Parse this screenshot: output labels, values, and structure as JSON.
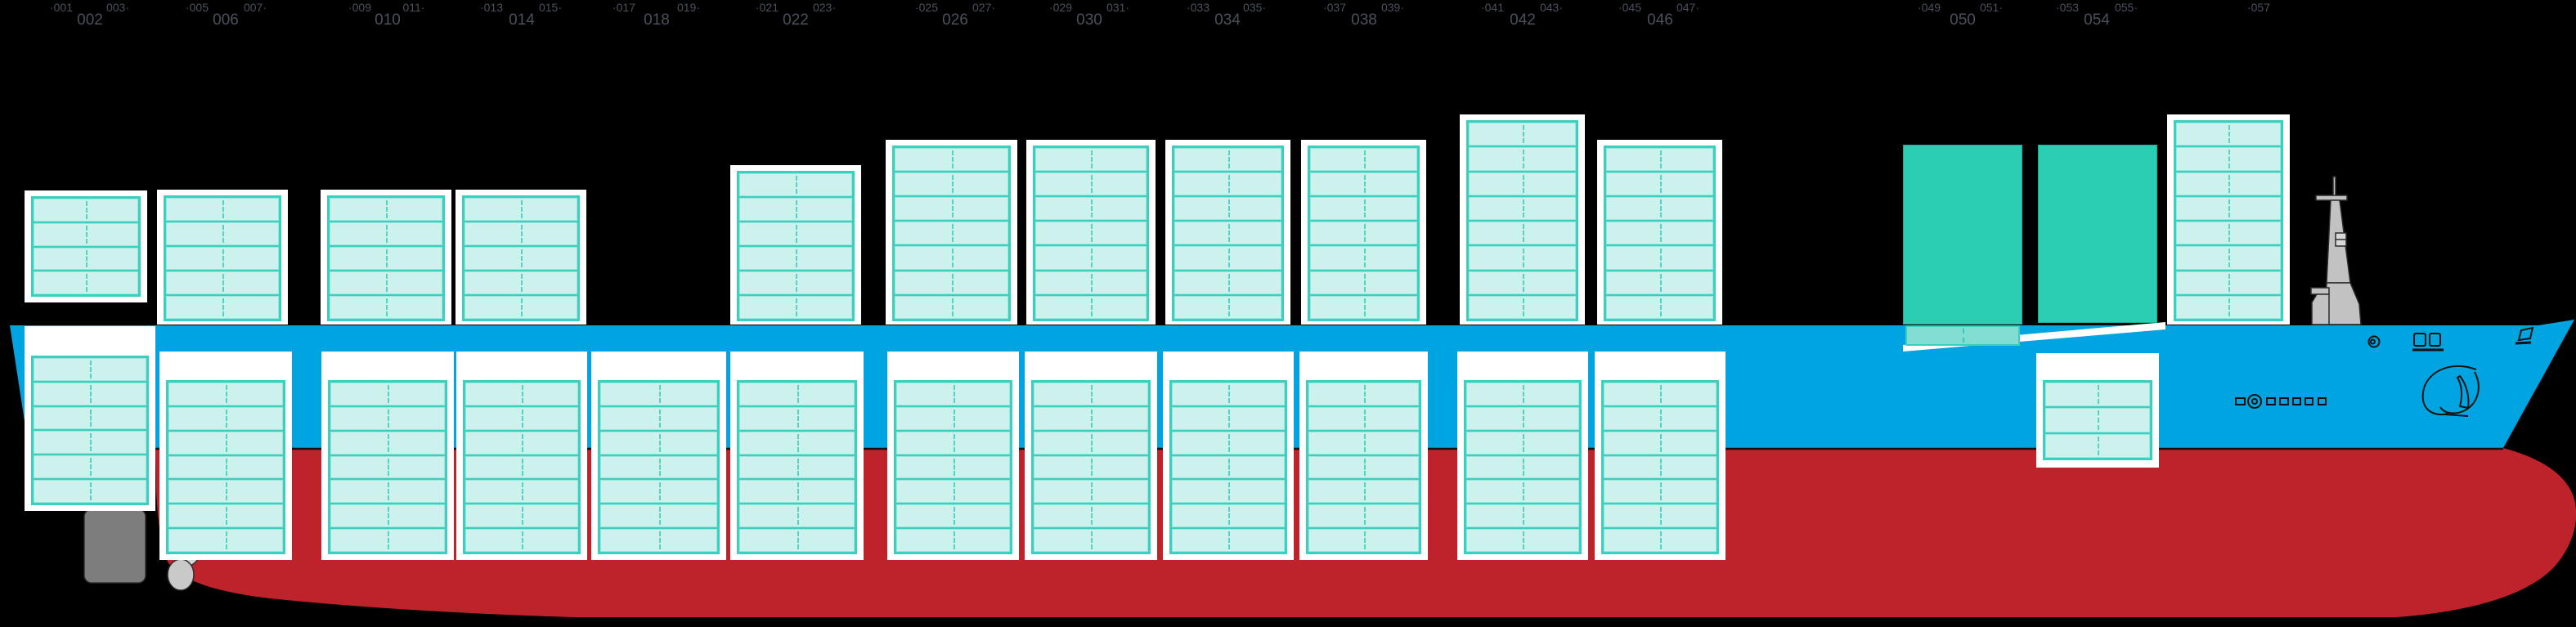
{
  "diagram": {
    "name": "container-ship-stowage-side-profile",
    "orientation": "bow-right"
  },
  "colors": {
    "background": "#000000",
    "hull_blue": "#00a4e0",
    "hull_red": "#be232b",
    "panel_white": "#ffffff",
    "cell_fill": "#cdf2ed",
    "cell_border": "#3bcfc0",
    "deckhouse_teal": "#2bceb3",
    "deckhouse_strip_fill": "#82ded3",
    "label_gray": "#4a515c",
    "rudder_gray": "#7d7d7d",
    "propeller_gray": "#c9c9c9",
    "mast_gray": "#c2c2c2",
    "line_art": "#111111"
  },
  "bays": [
    {
      "id": "002",
      "label_left": "·001",
      "label": "002",
      "label_right": "003·",
      "above_type": "containers",
      "above_tiers": 4,
      "below_tiers": 6
    },
    {
      "id": "006",
      "label_left": "·005",
      "label": "006",
      "label_right": "007·",
      "above_type": "containers",
      "above_tiers": 5,
      "below_tiers": 7
    },
    {
      "id": "010",
      "label_left": "·009",
      "label": "010",
      "label_right": "011·",
      "above_type": "containers",
      "above_tiers": 5,
      "below_tiers": 7
    },
    {
      "id": "014",
      "label_left": "·013",
      "label": "014",
      "label_right": "015·",
      "above_type": "containers",
      "above_tiers": 5,
      "below_tiers": 7
    },
    {
      "id": "018",
      "label_left": "·017",
      "label": "018",
      "label_right": "019·",
      "above_type": "none",
      "above_tiers": 0,
      "below_tiers": 7
    },
    {
      "id": "022",
      "label_left": "·021",
      "label": "022",
      "label_right": "023·",
      "above_type": "containers",
      "above_tiers": 6,
      "below_tiers": 7
    },
    {
      "id": "026",
      "label_left": "·025",
      "label": "026",
      "label_right": "027·",
      "above_type": "containers",
      "above_tiers": 7,
      "below_tiers": 7
    },
    {
      "id": "030",
      "label_left": "·029",
      "label": "030",
      "label_right": "031·",
      "above_type": "containers",
      "above_tiers": 7,
      "below_tiers": 7
    },
    {
      "id": "034",
      "label_left": "·033",
      "label": "034",
      "label_right": "035·",
      "above_type": "containers",
      "above_tiers": 7,
      "below_tiers": 7
    },
    {
      "id": "038",
      "label_left": "·037",
      "label": "038",
      "label_right": "039·",
      "above_type": "containers",
      "above_tiers": 7,
      "below_tiers": 7
    },
    {
      "id": "042",
      "label_left": "·041",
      "label": "042",
      "label_right": "043·",
      "above_type": "containers",
      "above_tiers": 8,
      "below_tiers": 7
    },
    {
      "id": "046",
      "label_left": "·045",
      "label": "046",
      "label_right": "047·",
      "above_type": "containers",
      "above_tiers": 7,
      "below_tiers": 7
    },
    {
      "id": "050",
      "label_left": "·049",
      "label": "050",
      "label_right": "051·",
      "above_type": "deckhouse",
      "above_tiers": 0,
      "below_tiers": 0,
      "deck_strip_cells": 2
    },
    {
      "id": "054",
      "label_left": "·053",
      "label": "054",
      "label_right": "055·",
      "above_type": "deckhouse",
      "above_tiers": 0,
      "below_tiers": 3
    },
    {
      "id": "057",
      "label_left": "·057",
      "label": "",
      "label_right": "",
      "above_type": "containers",
      "above_tiers": 8,
      "below_tiers": 0
    }
  ]
}
